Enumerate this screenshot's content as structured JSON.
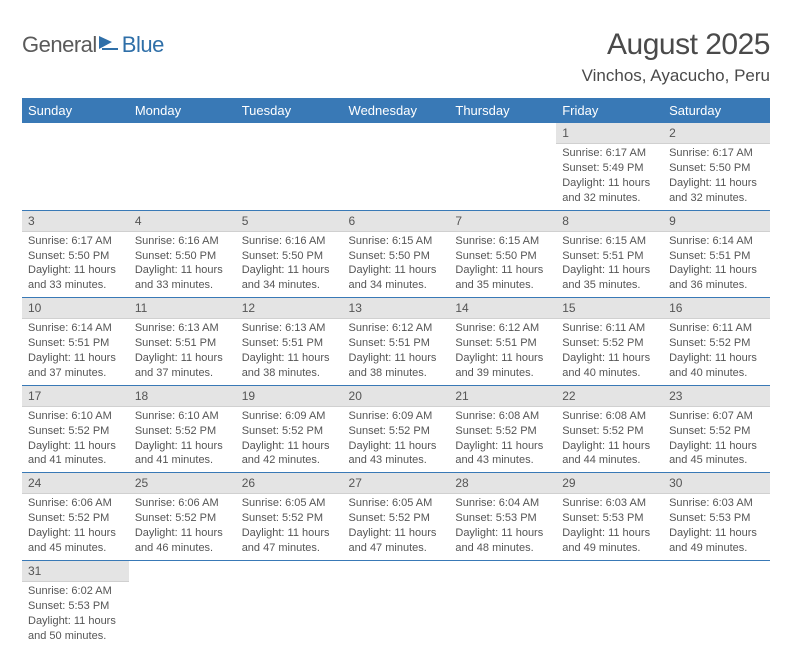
{
  "logo": {
    "general": "General",
    "blue": "Blue"
  },
  "title": "August 2025",
  "location": "Vinchos, Ayacucho, Peru",
  "headerColor": "#3979b6",
  "days": [
    "Sunday",
    "Monday",
    "Tuesday",
    "Wednesday",
    "Thursday",
    "Friday",
    "Saturday"
  ],
  "weeks": [
    [
      null,
      null,
      null,
      null,
      null,
      {
        "n": "1",
        "sr": "6:17 AM",
        "ss": "5:49 PM",
        "dl": "11 hours and 32 minutes."
      },
      {
        "n": "2",
        "sr": "6:17 AM",
        "ss": "5:50 PM",
        "dl": "11 hours and 32 minutes."
      }
    ],
    [
      {
        "n": "3",
        "sr": "6:17 AM",
        "ss": "5:50 PM",
        "dl": "11 hours and 33 minutes."
      },
      {
        "n": "4",
        "sr": "6:16 AM",
        "ss": "5:50 PM",
        "dl": "11 hours and 33 minutes."
      },
      {
        "n": "5",
        "sr": "6:16 AM",
        "ss": "5:50 PM",
        "dl": "11 hours and 34 minutes."
      },
      {
        "n": "6",
        "sr": "6:15 AM",
        "ss": "5:50 PM",
        "dl": "11 hours and 34 minutes."
      },
      {
        "n": "7",
        "sr": "6:15 AM",
        "ss": "5:50 PM",
        "dl": "11 hours and 35 minutes."
      },
      {
        "n": "8",
        "sr": "6:15 AM",
        "ss": "5:51 PM",
        "dl": "11 hours and 35 minutes."
      },
      {
        "n": "9",
        "sr": "6:14 AM",
        "ss": "5:51 PM",
        "dl": "11 hours and 36 minutes."
      }
    ],
    [
      {
        "n": "10",
        "sr": "6:14 AM",
        "ss": "5:51 PM",
        "dl": "11 hours and 37 minutes."
      },
      {
        "n": "11",
        "sr": "6:13 AM",
        "ss": "5:51 PM",
        "dl": "11 hours and 37 minutes."
      },
      {
        "n": "12",
        "sr": "6:13 AM",
        "ss": "5:51 PM",
        "dl": "11 hours and 38 minutes."
      },
      {
        "n": "13",
        "sr": "6:12 AM",
        "ss": "5:51 PM",
        "dl": "11 hours and 38 minutes."
      },
      {
        "n": "14",
        "sr": "6:12 AM",
        "ss": "5:51 PM",
        "dl": "11 hours and 39 minutes."
      },
      {
        "n": "15",
        "sr": "6:11 AM",
        "ss": "5:52 PM",
        "dl": "11 hours and 40 minutes."
      },
      {
        "n": "16",
        "sr": "6:11 AM",
        "ss": "5:52 PM",
        "dl": "11 hours and 40 minutes."
      }
    ],
    [
      {
        "n": "17",
        "sr": "6:10 AM",
        "ss": "5:52 PM",
        "dl": "11 hours and 41 minutes."
      },
      {
        "n": "18",
        "sr": "6:10 AM",
        "ss": "5:52 PM",
        "dl": "11 hours and 41 minutes."
      },
      {
        "n": "19",
        "sr": "6:09 AM",
        "ss": "5:52 PM",
        "dl": "11 hours and 42 minutes."
      },
      {
        "n": "20",
        "sr": "6:09 AM",
        "ss": "5:52 PM",
        "dl": "11 hours and 43 minutes."
      },
      {
        "n": "21",
        "sr": "6:08 AM",
        "ss": "5:52 PM",
        "dl": "11 hours and 43 minutes."
      },
      {
        "n": "22",
        "sr": "6:08 AM",
        "ss": "5:52 PM",
        "dl": "11 hours and 44 minutes."
      },
      {
        "n": "23",
        "sr": "6:07 AM",
        "ss": "5:52 PM",
        "dl": "11 hours and 45 minutes."
      }
    ],
    [
      {
        "n": "24",
        "sr": "6:06 AM",
        "ss": "5:52 PM",
        "dl": "11 hours and 45 minutes."
      },
      {
        "n": "25",
        "sr": "6:06 AM",
        "ss": "5:52 PM",
        "dl": "11 hours and 46 minutes."
      },
      {
        "n": "26",
        "sr": "6:05 AM",
        "ss": "5:52 PM",
        "dl": "11 hours and 47 minutes."
      },
      {
        "n": "27",
        "sr": "6:05 AM",
        "ss": "5:52 PM",
        "dl": "11 hours and 47 minutes."
      },
      {
        "n": "28",
        "sr": "6:04 AM",
        "ss": "5:53 PM",
        "dl": "11 hours and 48 minutes."
      },
      {
        "n": "29",
        "sr": "6:03 AM",
        "ss": "5:53 PM",
        "dl": "11 hours and 49 minutes."
      },
      {
        "n": "30",
        "sr": "6:03 AM",
        "ss": "5:53 PM",
        "dl": "11 hours and 49 minutes."
      }
    ],
    [
      {
        "n": "31",
        "sr": "6:02 AM",
        "ss": "5:53 PM",
        "dl": "11 hours and 50 minutes."
      },
      null,
      null,
      null,
      null,
      null,
      null
    ]
  ],
  "labels": {
    "sunrise": "Sunrise:",
    "sunset": "Sunset:",
    "daylight": "Daylight:"
  }
}
